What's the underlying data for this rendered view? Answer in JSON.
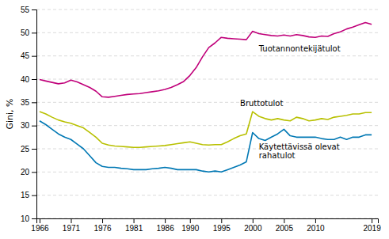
{
  "chart_data": {
    "type": "line",
    "ylabel": "Gini, %",
    "x": [
      1966,
      1967,
      1968,
      1969,
      1970,
      1971,
      1972,
      1973,
      1974,
      1975,
      1976,
      1977,
      1978,
      1979,
      1980,
      1981,
      1982,
      1983,
      1984,
      1985,
      1986,
      1987,
      1988,
      1989,
      1990,
      1991,
      1992,
      1993,
      1994,
      1995,
      1996,
      1997,
      1998,
      1999,
      2000,
      2001,
      2002,
      2003,
      2004,
      2005,
      2006,
      2007,
      2008,
      2009,
      2010,
      2011,
      2012,
      2013,
      2014,
      2015,
      2016,
      2017,
      2018,
      2019
    ],
    "series": [
      {
        "color": "#c0007a",
        "values": [
          39.9,
          39.6,
          39.3,
          39.0,
          39.2,
          39.8,
          39.4,
          38.8,
          38.2,
          37.4,
          36.2,
          36.1,
          36.3,
          36.5,
          36.7,
          36.8,
          36.9,
          37.1,
          37.3,
          37.5,
          37.8,
          38.2,
          38.8,
          39.5,
          40.8,
          42.5,
          44.8,
          46.8,
          47.8,
          49.0,
          48.8,
          48.7,
          48.6,
          48.5,
          50.3,
          49.8,
          49.6,
          49.4,
          49.3,
          49.5,
          49.3,
          49.6,
          49.4,
          49.1,
          49.0,
          49.3,
          49.2,
          49.8,
          50.2,
          50.8,
          51.2,
          51.7,
          52.2,
          51.8
        ]
      },
      {
        "color": "#b8c000",
        "values": [
          33.0,
          32.5,
          31.8,
          31.2,
          30.8,
          30.5,
          30.0,
          29.5,
          28.5,
          27.5,
          26.2,
          25.8,
          25.6,
          25.5,
          25.4,
          25.3,
          25.3,
          25.4,
          25.5,
          25.6,
          25.7,
          25.9,
          26.1,
          26.3,
          26.5,
          26.2,
          25.9,
          25.8,
          25.9,
          25.9,
          26.5,
          27.2,
          27.8,
          28.2,
          33.0,
          32.0,
          31.5,
          31.2,
          31.5,
          31.2,
          31.0,
          31.8,
          31.5,
          31.0,
          31.2,
          31.5,
          31.3,
          31.8,
          32.0,
          32.2,
          32.5,
          32.5,
          32.8,
          32.8
        ]
      },
      {
        "color": "#0078b4",
        "values": [
          31.0,
          30.2,
          29.2,
          28.2,
          27.5,
          27.0,
          26.0,
          25.0,
          23.5,
          22.0,
          21.2,
          21.0,
          21.0,
          20.8,
          20.7,
          20.5,
          20.5,
          20.5,
          20.7,
          20.8,
          21.0,
          20.8,
          20.5,
          20.5,
          20.5,
          20.5,
          20.2,
          20.0,
          20.2,
          20.0,
          20.5,
          21.0,
          21.5,
          22.2,
          28.5,
          27.2,
          26.8,
          27.5,
          28.2,
          29.2,
          27.8,
          27.5,
          27.5,
          27.5,
          27.5,
          27.2,
          27.0,
          27.0,
          27.5,
          27.0,
          27.5,
          27.5,
          28.0,
          28.0
        ]
      }
    ],
    "annotations": [
      {
        "text": "Tuotannontekijätulot",
        "x": 2001,
        "y": 46.5
      },
      {
        "text": "Bruttotulot",
        "x": 1998,
        "y": 34.8
      },
      {
        "text": "Käytettävissä olevat\nrahatulot",
        "x": 2001,
        "y": 24.5
      }
    ],
    "xlim": [
      1965.5,
      2020
    ],
    "xticks": [
      1966,
      1971,
      1976,
      1981,
      1986,
      1990,
      1995,
      2000,
      2005,
      2010,
      2019
    ],
    "ylim": [
      10,
      55
    ],
    "yticks": [
      10,
      15,
      20,
      25,
      30,
      35,
      40,
      45,
      50,
      55
    ],
    "grid": true
  }
}
